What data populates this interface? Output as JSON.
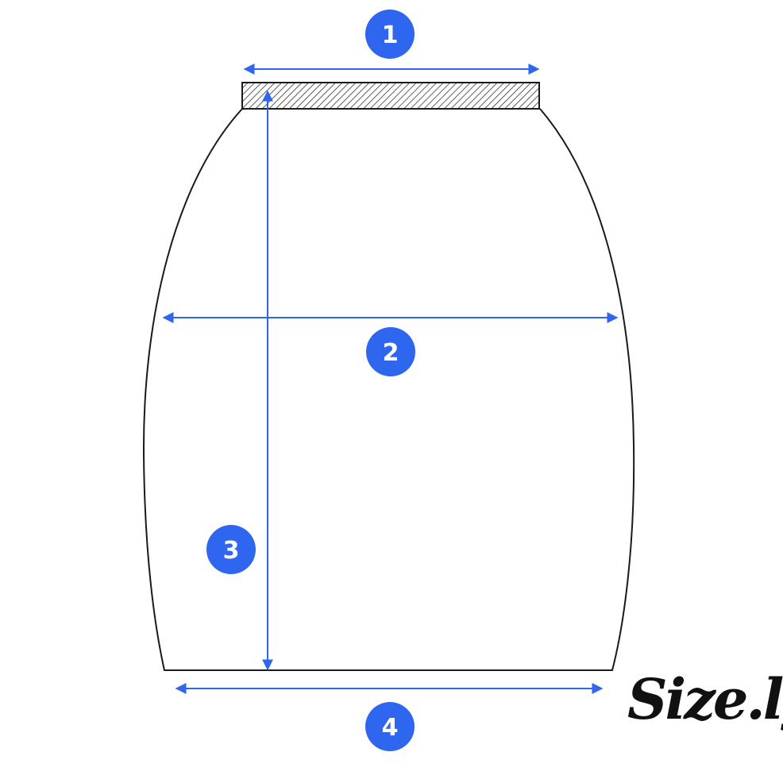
{
  "colors": {
    "accent": "#2f66f0",
    "outline": "#1a1a1a",
    "logo_dot": "#2f66f0"
  },
  "measurements": [
    {
      "id": "1",
      "label": "1"
    },
    {
      "id": "2",
      "label": "2"
    },
    {
      "id": "3",
      "label": "3"
    },
    {
      "id": "4",
      "label": "4"
    }
  ],
  "logo": {
    "text": "Size.ly"
  }
}
